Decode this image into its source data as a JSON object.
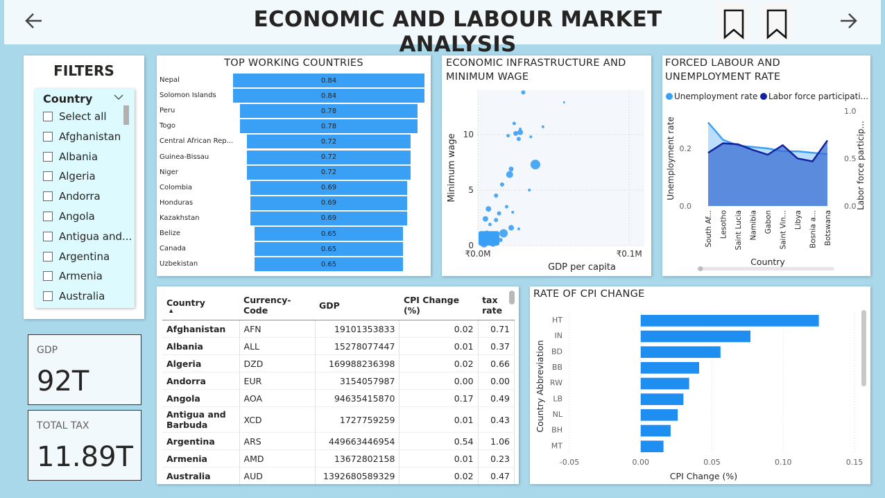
{
  "header": {
    "title": "ECONOMIC AND LABOUR MARKET ANALYSIS",
    "back_icon": "arrow-left-icon",
    "forward_icon": "arrow-right-icon",
    "bookmark_icons": [
      "bookmark-icon",
      "bookmark-icon"
    ]
  },
  "filters": {
    "title": "FILTERS",
    "slicer_title": "Country",
    "items": [
      "Select all",
      "Afghanistan",
      "Albania",
      "Algeria",
      "Andorra",
      "Angola",
      "Antigua and...",
      "Argentina",
      "Armenia",
      "Australia"
    ]
  },
  "cards": {
    "gdp": {
      "label": "GDP",
      "value": "92T"
    },
    "tax": {
      "label": "TOTAL TAX",
      "value": "11.89T"
    }
  },
  "top_working": {
    "title": "TOP WORKING COUNTRIES",
    "rows": [
      {
        "label": "Nepal",
        "value": "0.84"
      },
      {
        "label": "Solomon Islands",
        "value": "0.84"
      },
      {
        "label": "Peru",
        "value": "0.78"
      },
      {
        "label": "Togo",
        "value": "0.78"
      },
      {
        "label": "Central African Rep...",
        "value": "0.72"
      },
      {
        "label": "Guinea-Bissau",
        "value": "0.72"
      },
      {
        "label": "Niger",
        "value": "0.72"
      },
      {
        "label": "Colombia",
        "value": "0.69"
      },
      {
        "label": "Honduras",
        "value": "0.69"
      },
      {
        "label": "Kazakhstan",
        "value": "0.69"
      },
      {
        "label": "Belize",
        "value": "0.65"
      },
      {
        "label": "Canada",
        "value": "0.65"
      },
      {
        "label": "Uzbekistan",
        "value": "0.65"
      }
    ]
  },
  "infra": {
    "title_line1": "ECONOMIC INFRASTRUCTURE AND",
    "title_line2": "MINIMUM WAGE",
    "xlabel": "GDP per capita",
    "ylabel": "Minimum wage",
    "xticks": [
      "₹0.0M",
      "₹0.1M"
    ],
    "yticks": [
      "0",
      "5",
      "10"
    ]
  },
  "forced": {
    "title_line1": "FORCED LABOUR AND",
    "title_line2": "UNEMPLOYMENT RATE",
    "legend1": "Unemployment rate",
    "legend2": "Labor force participati...",
    "ylabel_left": "Unemployment rate",
    "ylabel_right": "Labor force particip...",
    "xlabel": "Country",
    "yticks_left": [
      "0.0",
      "0.2"
    ],
    "yticks_right": [
      "0.0",
      "0.5",
      "1.0"
    ],
    "countries": [
      "South Af...",
      "Lesotho",
      "Saint Lucia",
      "Namibia",
      "Gabon",
      "Saint Vin...",
      "Libya",
      "Bosnia a...",
      "Botswana"
    ]
  },
  "table": {
    "headers": [
      "Country",
      "Currency-Code",
      "GDP",
      "CPI Change (%)",
      "tax rate"
    ],
    "rows": [
      [
        "Afghanistan",
        "AFN",
        "19101353833",
        "0.02",
        "0.71"
      ],
      [
        "Albania",
        "ALL",
        "15278077447",
        "0.01",
        "0.37"
      ],
      [
        "Algeria",
        "DZD",
        "169988236398",
        "0.02",
        "0.66"
      ],
      [
        "Andorra",
        "EUR",
        "3154057987",
        "0.00",
        "0.00"
      ],
      [
        "Angola",
        "AOA",
        "94635415870",
        "0.17",
        "0.49"
      ],
      [
        "Antigua and Barbuda",
        "XCD",
        "1727759259",
        "0.01",
        "0.43"
      ],
      [
        "Argentina",
        "ARS",
        "449663446954",
        "0.54",
        "1.06"
      ],
      [
        "Armenia",
        "AMD",
        "13672802158",
        "0.01",
        "0.23"
      ],
      [
        "Australia",
        "AUD",
        "1392680589329",
        "0.02",
        "0.47"
      ]
    ]
  },
  "cpi": {
    "title": "RATE OF CPI CHANGE",
    "ylabel": "Country Abbreviation",
    "xlabel": "CPI Change (%)",
    "xticks": [
      "-0.05",
      "0.00",
      "0.05",
      "0.10",
      "0.15"
    ]
  },
  "chart_data": [
    {
      "type": "bar",
      "title": "TOP WORKING COUNTRIES",
      "orientation": "horizontal",
      "categories": [
        "Nepal",
        "Solomon Islands",
        "Peru",
        "Togo",
        "Central African Rep...",
        "Guinea-Bissau",
        "Niger",
        "Colombia",
        "Honduras",
        "Kazakhstan",
        "Belize",
        "Canada",
        "Uzbekistan"
      ],
      "values": [
        0.84,
        0.84,
        0.78,
        0.78,
        0.72,
        0.72,
        0.72,
        0.69,
        0.69,
        0.69,
        0.65,
        0.65,
        0.65
      ],
      "color": "#3aa0f5"
    },
    {
      "type": "scatter",
      "title": "ECONOMIC INFRASTRUCTURE AND MINIMUM WAGE",
      "xlabel": "GDP per capita",
      "ylabel": "Minimum wage",
      "xlim": [
        0,
        0.11
      ],
      "ylim": [
        0,
        14
      ],
      "points": [
        [
          0.03,
          13.8,
          3
        ],
        [
          0.057,
          12.9,
          1.5
        ],
        [
          0.024,
          11.0,
          2.5
        ],
        [
          0.028,
          10.5,
          2
        ],
        [
          0.025,
          10.1,
          3.5
        ],
        [
          0.028,
          10.2,
          4
        ],
        [
          0.027,
          9.6,
          3
        ],
        [
          0.02,
          9.9,
          2.5
        ],
        [
          0.043,
          10.7,
          2
        ],
        [
          0.035,
          9.8,
          2
        ],
        [
          0.038,
          7.3,
          7
        ],
        [
          0.022,
          6.9,
          3.5
        ],
        [
          0.021,
          6.4,
          5
        ],
        [
          0.016,
          5.5,
          3
        ],
        [
          0.034,
          5.0,
          2
        ],
        [
          0.012,
          4.5,
          3
        ],
        [
          0.007,
          3.3,
          4
        ],
        [
          0.019,
          3.5,
          2.5
        ],
        [
          0.014,
          2.9,
          3
        ],
        [
          0.023,
          3.0,
          2
        ],
        [
          0.005,
          2.4,
          4
        ],
        [
          0.012,
          2.3,
          3
        ],
        [
          0.008,
          1.9,
          2.5
        ],
        [
          0.027,
          1.5,
          2
        ],
        [
          0.022,
          1.6,
          4
        ],
        [
          0.017,
          1.1,
          6
        ],
        [
          0.012,
          0.9,
          5
        ],
        [
          0.003,
          0.7,
          4
        ],
        [
          0.007,
          0.4,
          3
        ],
        [
          0.01,
          0.2,
          5
        ],
        [
          0.004,
          0.2,
          6
        ],
        [
          0.002,
          0.5,
          3
        ],
        [
          0.006,
          1.1,
          4
        ],
        [
          0.012,
          0.7,
          3
        ],
        [
          0.009,
          0.6,
          3
        ],
        [
          0.015,
          0.5,
          3
        ]
      ],
      "color": "#3aa0f5"
    },
    {
      "type": "area",
      "title": "FORCED LABOUR AND UNEMPLOYMENT RATE",
      "categories": [
        "South Af...",
        "Lesotho",
        "Saint Lucia",
        "Namibia",
        "Gabon",
        "Saint Vin...",
        "Libya",
        "Bosnia a...",
        "Botswana"
      ],
      "series": [
        {
          "name": "Unemployment rate",
          "values": [
            0.29,
            0.23,
            0.21,
            0.205,
            0.2,
            0.19,
            0.19,
            0.185,
            0.18
          ],
          "axis": "left",
          "color": "#3aa0f5"
        },
        {
          "name": "Labor force participati...",
          "values": [
            0.56,
            0.66,
            0.65,
            0.59,
            0.54,
            0.64,
            0.5,
            0.47,
            0.69
          ],
          "axis": "right",
          "color": "#12239e"
        }
      ],
      "ylim_left": [
        0,
        0.33
      ],
      "ylim_right": [
        0,
        1.0
      ],
      "legend": "top"
    },
    {
      "type": "bar",
      "title": "RATE OF CPI CHANGE",
      "orientation": "horizontal",
      "xlabel": "CPI Change (%)",
      "ylabel": "Country Abbreviation",
      "categories": [
        "HT",
        "IN",
        "BD",
        "BB",
        "RW",
        "LB",
        "NL",
        "BH",
        "MT"
      ],
      "values": [
        0.125,
        0.077,
        0.056,
        0.041,
        0.034,
        0.03,
        0.026,
        0.021,
        0.016
      ],
      "xlim": [
        -0.05,
        0.15
      ],
      "color": "#1f8ef1"
    }
  ]
}
